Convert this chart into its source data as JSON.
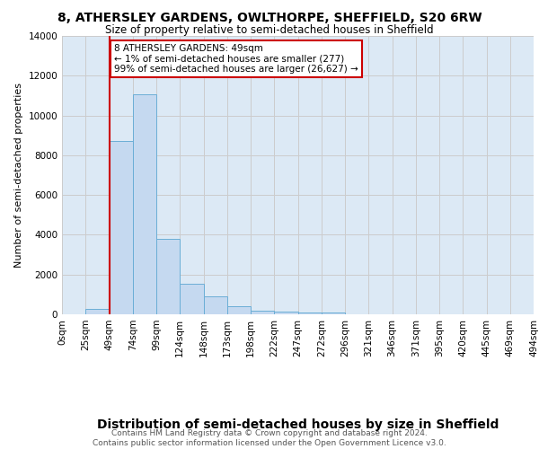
{
  "title": "8, ATHERSLEY GARDENS, OWLTHORPE, SHEFFIELD, S20 6RW",
  "subtitle": "Size of property relative to semi-detached houses in Sheffield",
  "xlabel": "Distribution of semi-detached houses by size in Sheffield",
  "ylabel": "Number of semi-detached properties",
  "bin_labels": [
    "0sqm",
    "25sqm",
    "49sqm",
    "74sqm",
    "99sqm",
    "124sqm",
    "148sqm",
    "173sqm",
    "198sqm",
    "222sqm",
    "247sqm",
    "272sqm",
    "296sqm",
    "321sqm",
    "346sqm",
    "371sqm",
    "395sqm",
    "420sqm",
    "445sqm",
    "469sqm",
    "494sqm"
  ],
  "bar_values": [
    0,
    277,
    8700,
    11050,
    3800,
    1550,
    900,
    400,
    200,
    150,
    100,
    100,
    0,
    0,
    0,
    0,
    0,
    0,
    0,
    0
  ],
  "bar_color": "#c5d9f0",
  "bar_edge_color": "#6baed6",
  "grid_color": "#cccccc",
  "background_color": "#dce9f5",
  "annotation_text": "8 ATHERSLEY GARDENS: 49sqm\n← 1% of semi-detached houses are smaller (277)\n99% of semi-detached houses are larger (26,627) →",
  "annotation_box_color": "#ffffff",
  "annotation_box_edge_color": "#cc0000",
  "footer_text": "Contains HM Land Registry data © Crown copyright and database right 2024.\nContains public sector information licensed under the Open Government Licence v3.0.",
  "ylim": [
    0,
    14000
  ],
  "yticks": [
    0,
    2000,
    4000,
    6000,
    8000,
    10000,
    12000,
    14000
  ],
  "title_fontsize": 10,
  "subtitle_fontsize": 8.5,
  "xlabel_fontsize": 10,
  "ylabel_fontsize": 8,
  "tick_fontsize": 7.5,
  "footer_fontsize": 6.5
}
